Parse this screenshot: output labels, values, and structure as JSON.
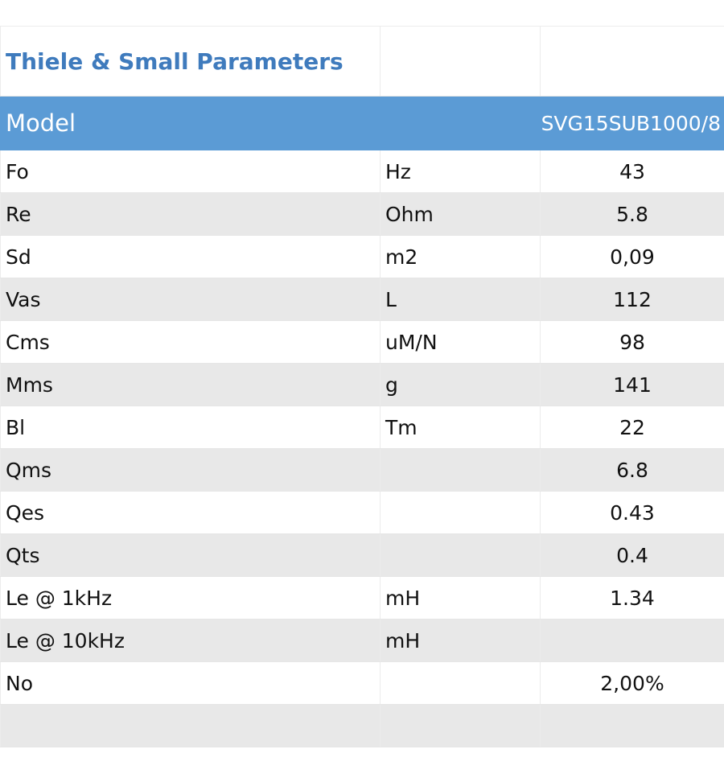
{
  "title": "Thiele & Small Parameters",
  "header": {
    "model_label": "Model",
    "model_value": "SVG15SUB1000/8"
  },
  "rows": [
    {
      "param": "Fo",
      "unit": "Hz",
      "value": "43"
    },
    {
      "param": "Re",
      "unit": "Ohm",
      "value": "5.8"
    },
    {
      "param": "Sd",
      "unit": "m2",
      "value": "0,09"
    },
    {
      "param": "Vas",
      "unit": "L",
      "value": "112"
    },
    {
      "param": "Cms",
      "unit": "uM/N",
      "value": "98"
    },
    {
      "param": "Mms",
      "unit": "g",
      "value": "141"
    },
    {
      "param": "Bl",
      "unit": "Tm",
      "value": "22"
    },
    {
      "param": "Qms",
      "unit": "",
      "value": "6.8"
    },
    {
      "param": "Qes",
      "unit": "",
      "value": "0.43"
    },
    {
      "param": "Qts",
      "unit": "",
      "value": "0.4"
    },
    {
      "param": "Le @ 1kHz",
      "unit": "mH",
      "value": "1.34"
    },
    {
      "param": "Le @ 10kHz",
      "unit": "mH",
      "value": ""
    },
    {
      "param": "No",
      "unit": "",
      "value": "2,00%"
    }
  ],
  "colors": {
    "title": "#3f7bbd",
    "header_bg": "#5b9bd5",
    "stripe": "#e8e8e8"
  }
}
